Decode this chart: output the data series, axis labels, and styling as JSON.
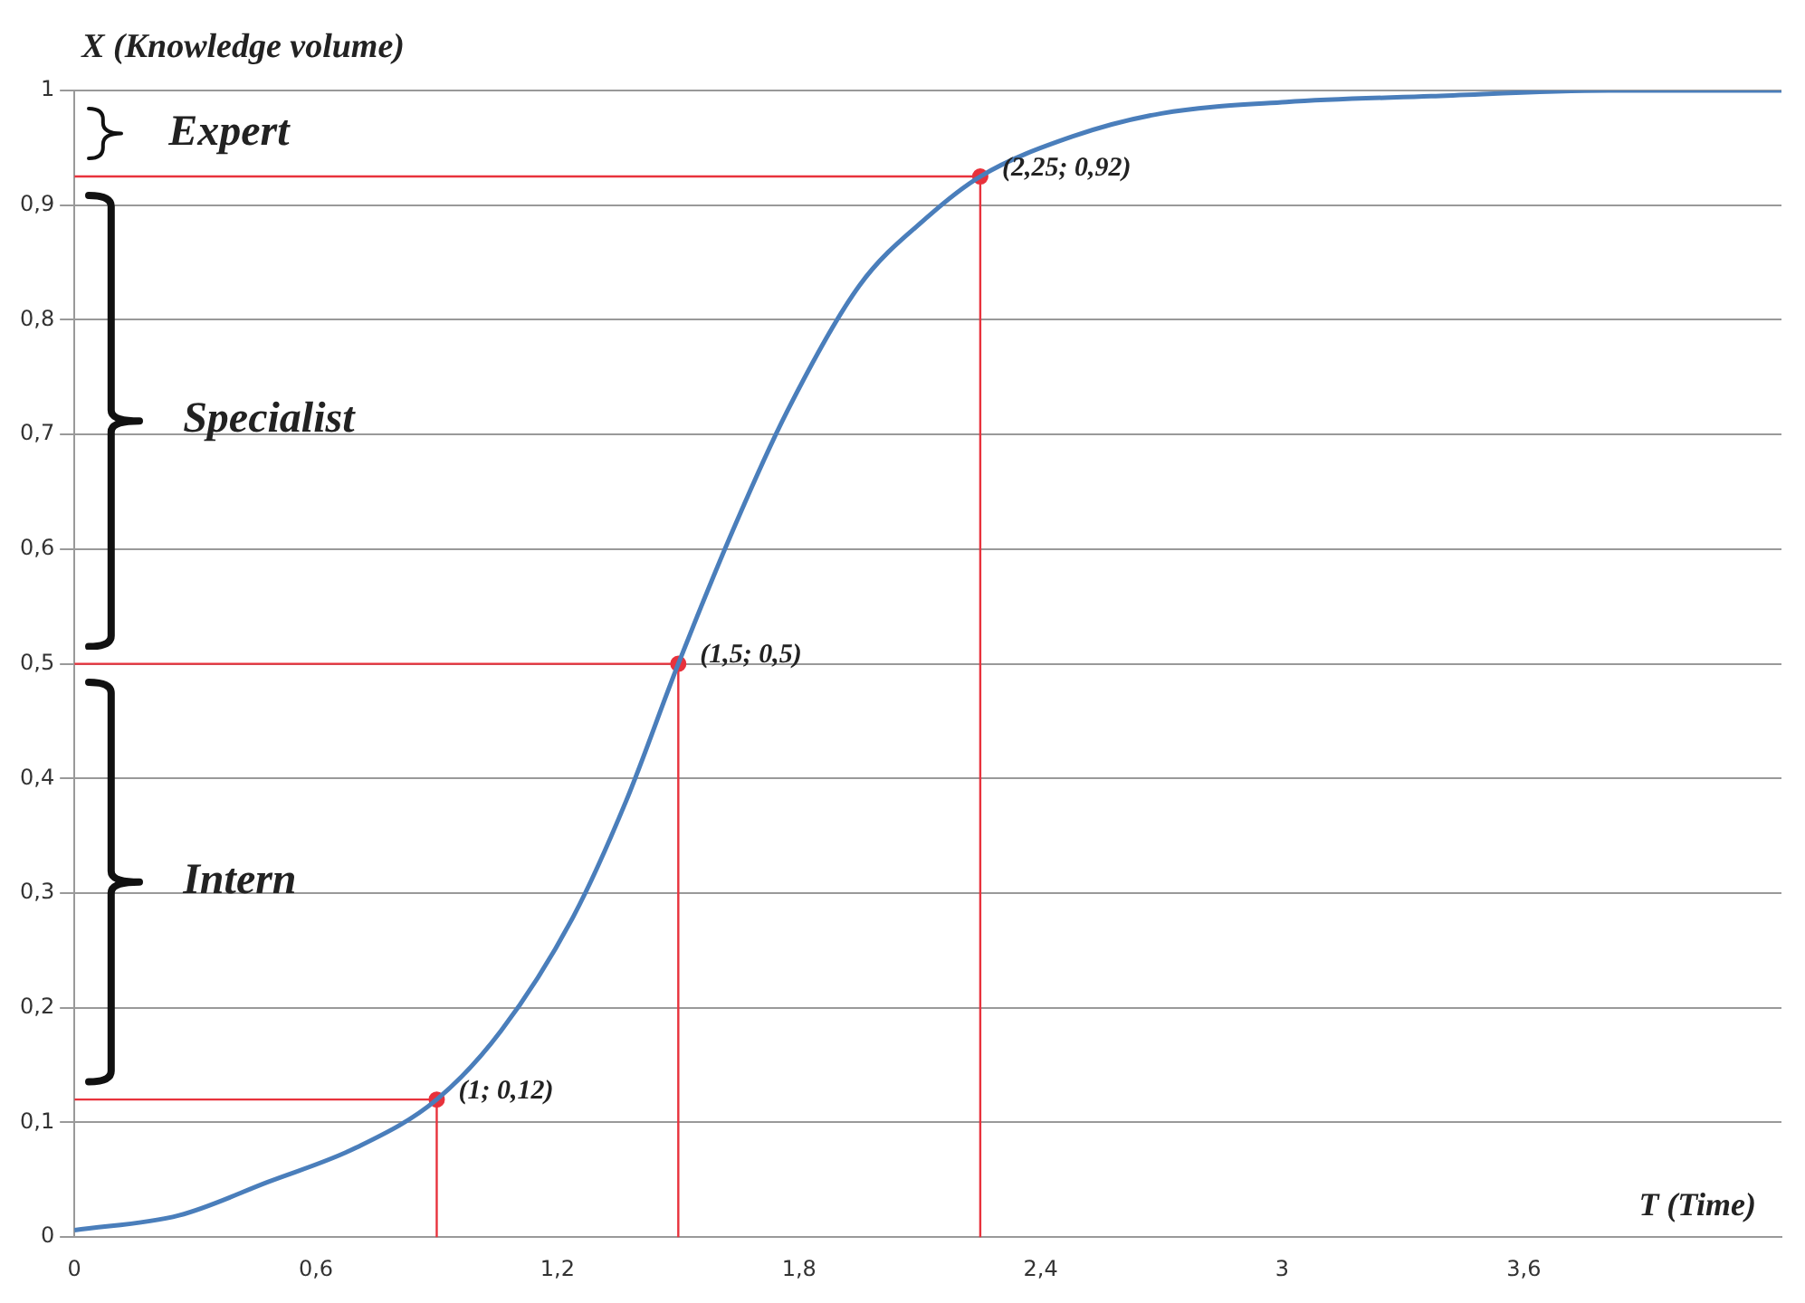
{
  "chart_data": {
    "type": "line",
    "xlabel": "T (Time)",
    "ylabel": "X (Knowledge volume)",
    "xlim": [
      0,
      4.24
    ],
    "ylim": [
      0,
      1
    ],
    "xticks": [
      0,
      {
        "value": 0.6,
        "label": "0,6"
      },
      {
        "value": 1.2,
        "label": "1,2"
      },
      {
        "value": 1.8,
        "label": "1,8"
      },
      {
        "value": 2.4,
        "label": "2,4"
      },
      3,
      {
        "value": 3.6,
        "label": "3,6"
      }
    ],
    "yticks": [
      0,
      {
        "value": 0.1,
        "label": "0,1"
      },
      {
        "value": 0.2,
        "label": "0,2"
      },
      {
        "value": 0.3,
        "label": "0,3"
      },
      {
        "value": 0.4,
        "label": "0,4"
      },
      {
        "value": 0.5,
        "label": "0,5"
      },
      {
        "value": 0.6,
        "label": "0,6"
      },
      {
        "value": 0.7,
        "label": "0,7"
      },
      {
        "value": 0.8,
        "label": "0,8"
      },
      {
        "value": 0.9,
        "label": "0,9"
      },
      1
    ],
    "grid": "y",
    "legend": false,
    "marker": "none",
    "line_style": "solid",
    "series": [
      {
        "color": "#4a7ebb",
        "x": [
          0,
          0.26,
          0.48,
          0.7,
          0.9,
          1.06,
          1.24,
          1.37,
          1.5,
          1.64,
          1.77,
          1.95,
          2.12,
          2.25,
          2.48,
          2.7,
          3.01,
          3.37,
          3.81,
          4.24
        ],
        "values": [
          0.006,
          0.019,
          0.048,
          0.078,
          0.12,
          0.18,
          0.28,
          0.38,
          0.5,
          0.62,
          0.72,
          0.83,
          0.89,
          0.925,
          0.96,
          0.98,
          0.99,
          0.995,
          1,
          1
        ]
      },
      {
        "type": "line",
        "color": "#e8323c",
        "x": [
          0,
          0.9,
          0.9
        ],
        "values": [
          0.12,
          0.12,
          0
        ]
      },
      {
        "type": "line",
        "color": "#e8323c",
        "x": [
          0,
          1.5,
          1.5
        ],
        "values": [
          0.5,
          0.5,
          0
        ]
      },
      {
        "type": "line",
        "color": "#e8323c",
        "x": [
          0,
          2.25,
          2.25
        ],
        "values": [
          0.925,
          0.925,
          0
        ]
      },
      {
        "type": "scatter",
        "color": "#e8323c",
        "marker": "circle",
        "x": [
          0.9,
          1.5,
          2.25
        ],
        "values": [
          0.12,
          0.5,
          0.925
        ]
      }
    ],
    "annotations": [
      {
        "text": "(1; 0,12)",
        "x": 0.9,
        "y": 0.12
      },
      {
        "text": "(1,5; 0,5)",
        "x": 1.5,
        "y": 0.5
      },
      {
        "text": "(2,25; 0,92)",
        "x": 2.25,
        "y": 0.925
      },
      "Expert",
      "Specialist",
      "Intern"
    ]
  }
}
